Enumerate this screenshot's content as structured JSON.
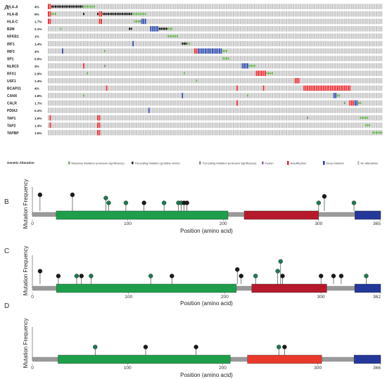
{
  "panel_labels": {
    "a": "A",
    "b": "B",
    "c": "C",
    "d": "D"
  },
  "oncoprint": {
    "genes": [
      {
        "name": "HLA-A",
        "freq": "4%"
      },
      {
        "name": "HLA-B",
        "freq": "5%"
      },
      {
        "name": "HLA-C",
        "freq": "1.7%"
      },
      {
        "name": "B2M",
        "freq": "2.1%"
      },
      {
        "name": "NFKB1",
        "freq": "1%"
      },
      {
        "name": "IRF1",
        "freq": "1.4%"
      },
      {
        "name": "IRF2",
        "freq": "4%"
      },
      {
        "name": "SP1",
        "freq": "0.6%"
      },
      {
        "name": "NLRC5",
        "freq": "3%"
      },
      {
        "name": "RFX1",
        "freq": "2.9%"
      },
      {
        "name": "USF1",
        "freq": "1.4%"
      },
      {
        "name": "BCAP31",
        "freq": "4%"
      },
      {
        "name": "CANX",
        "freq": "1.8%"
      },
      {
        "name": "CALR",
        "freq": "1.7%"
      },
      {
        "name": "PDIA3",
        "freq": "0.3%"
      },
      {
        "name": "TAP1",
        "freq": "1.9%"
      },
      {
        "name": "TAP2",
        "freq": "1.4%"
      },
      {
        "name": "TAPBP",
        "freq": "1.6%"
      }
    ],
    "legend_title": "Genetic Alteration",
    "legend": [
      {
        "label": "Missense Mutation (unknown significance)",
        "color": "#5fb446",
        "kind": "short"
      },
      {
        "label": "Truncating Mutation (putative driver)",
        "color": "#000000",
        "kind": "short"
      },
      {
        "label": "Truncating Mutation (unknown significance)",
        "color": "#708a6a",
        "kind": "short"
      },
      {
        "label": "Fusion",
        "color": "#8b48a8",
        "kind": "short"
      },
      {
        "label": "Amplification",
        "color": "#e8252b",
        "kind": "full"
      },
      {
        "label": "Deep Deletion",
        "color": "#2a44a8",
        "kind": "full"
      },
      {
        "label": "No alterations",
        "color": "#c4c4c4",
        "kind": "full"
      }
    ],
    "colors": {
      "none": "#c4c4c4",
      "missense": "#5fb446",
      "truncating_driver": "#000000",
      "truncating_unknown": "#708a6a",
      "amplification": "#e8252b",
      "deep_deletion": "#2a44a8"
    }
  },
  "lollipops": [
    {
      "id": "B",
      "ylabel": "Mutation Frequency",
      "xlabel": "Position (amino acid)",
      "length": 365,
      "ticks": [
        0,
        100,
        200,
        300,
        365
      ],
      "domains": [
        {
          "start": 25,
          "end": 205,
          "color": "#1e9e4a"
        },
        {
          "start": 222,
          "end": 300,
          "color": "#b5192b"
        },
        {
          "start": 338,
          "end": 365,
          "color": "#24379a"
        }
      ],
      "muts": [
        {
          "pos": 8,
          "h": 2,
          "c": "#1a1a1a"
        },
        {
          "pos": 42,
          "h": 2,
          "c": "#1a1a1a"
        },
        {
          "pos": 77,
          "h": 1.6,
          "c": "#1e7a4f"
        },
        {
          "pos": 80,
          "h": 1,
          "c": "#1e7a4f"
        },
        {
          "pos": 98,
          "h": 1,
          "c": "#1e7a4f"
        },
        {
          "pos": 117,
          "h": 1,
          "c": "#1a1a1a"
        },
        {
          "pos": 138,
          "h": 1,
          "c": "#1e7a4f"
        },
        {
          "pos": 153,
          "h": 1,
          "c": "#1e7a4f"
        },
        {
          "pos": 156,
          "h": 1,
          "c": "#1e7a4f"
        },
        {
          "pos": 159,
          "h": 1,
          "c": "#1a1a1a"
        },
        {
          "pos": 162,
          "h": 1,
          "c": "#1a1a1a"
        },
        {
          "pos": 300,
          "h": 1,
          "c": "#1e7a4f"
        },
        {
          "pos": 306,
          "h": 1.8,
          "c": "#1a1a1a"
        },
        {
          "pos": 337,
          "h": 1,
          "c": "#1e7a4f"
        }
      ]
    },
    {
      "id": "C",
      "ylabel": "Mutation Frequency",
      "xlabel": "Position (amino acid)",
      "length": 362,
      "ticks": [
        0,
        100,
        200,
        300,
        362
      ],
      "domains": [
        {
          "start": 25,
          "end": 212,
          "color": "#1e9e4a"
        },
        {
          "start": 228,
          "end": 306,
          "color": "#b5192b"
        },
        {
          "start": 335,
          "end": 362,
          "color": "#24379a"
        }
      ],
      "muts": [
        {
          "pos": 8,
          "h": 1.6,
          "c": "#1a1a1a"
        },
        {
          "pos": 27,
          "h": 1,
          "c": "#1a1a1a"
        },
        {
          "pos": 46,
          "h": 1,
          "c": "#1e7a4f"
        },
        {
          "pos": 51,
          "h": 1,
          "c": "#1a1a1a"
        },
        {
          "pos": 61,
          "h": 1,
          "c": "#1e7a4f"
        },
        {
          "pos": 123,
          "h": 1,
          "c": "#1e7a4f"
        },
        {
          "pos": 145,
          "h": 1,
          "c": "#1a1a1a"
        },
        {
          "pos": 213,
          "h": 1.8,
          "c": "#1a1a1a"
        },
        {
          "pos": 217,
          "h": 1,
          "c": "#1a1a1a"
        },
        {
          "pos": 232,
          "h": 1,
          "c": "#1e7a4f"
        },
        {
          "pos": 255,
          "h": 1.6,
          "c": "#1e7a4f"
        },
        {
          "pos": 258,
          "h": 2.8,
          "c": "#1e7a4f"
        },
        {
          "pos": 260,
          "h": 1,
          "c": "#1a1a1a"
        },
        {
          "pos": 300,
          "h": 1,
          "c": "#1a1a1a"
        },
        {
          "pos": 313,
          "h": 1,
          "c": "#1a1a1a"
        },
        {
          "pos": 321,
          "h": 1,
          "c": "#1a1a1a"
        },
        {
          "pos": 347,
          "h": 1,
          "c": "#1e7a4f"
        }
      ]
    },
    {
      "id": "D",
      "ylabel": "Mutation Frequency",
      "xlabel": "Position (amino acid)",
      "length": 366,
      "ticks": [
        0,
        100,
        200,
        300,
        366
      ],
      "domains": [
        {
          "start": 27,
          "end": 208,
          "color": "#1e9e4a"
        },
        {
          "start": 226,
          "end": 304,
          "color": "#e83a2c"
        },
        {
          "start": 338,
          "end": 366,
          "color": "#24379a"
        }
      ],
      "muts": [
        {
          "pos": 66,
          "h": 1,
          "c": "#1e7a4f"
        },
        {
          "pos": 119,
          "h": 1,
          "c": "#1a1a1a"
        },
        {
          "pos": 172,
          "h": 1,
          "c": "#1a1a1a"
        },
        {
          "pos": 259,
          "h": 1,
          "c": "#1e7a4f"
        },
        {
          "pos": 265,
          "h": 1,
          "c": "#1a1a1a"
        }
      ]
    }
  ]
}
